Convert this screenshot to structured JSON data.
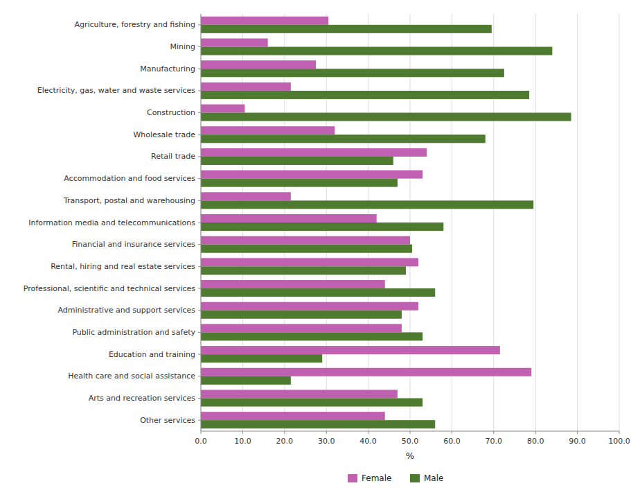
{
  "chart_data": {
    "type": "bar",
    "orientation": "horizontal",
    "categories": [
      "Agriculture, forestry and fishing",
      "Mining",
      "Manufacturing",
      "Electricity, gas, water and waste services",
      "Construction",
      "Wholesale trade",
      "Retail trade",
      "Accommodation and food services",
      "Transport, postal and warehousing",
      "Information media and telecommunications",
      "Financial and insurance services",
      "Rental, hiring and real estate services",
      "Professional, scientific and technical services",
      "Administrative and support services",
      "Public administration and safety",
      "Education and training",
      "Health care and social assistance",
      "Arts and recreation services",
      "Other services"
    ],
    "series": [
      {
        "name": "Female",
        "color": "#C060B0",
        "values": [
          30.5,
          16.0,
          27.5,
          21.5,
          10.5,
          32.0,
          54.0,
          53.0,
          21.5,
          42.0,
          50.0,
          52.0,
          44.0,
          52.0,
          48.0,
          71.5,
          79.0,
          47.0,
          44.0
        ]
      },
      {
        "name": "Male",
        "color": "#4E7B2F",
        "values": [
          69.5,
          84.0,
          72.5,
          78.5,
          88.5,
          68.0,
          46.0,
          47.0,
          79.5,
          58.0,
          50.5,
          49.0,
          56.0,
          48.0,
          53.0,
          29.0,
          21.5,
          53.0,
          56.0
        ]
      }
    ],
    "x_label": "%",
    "xlim": [
      0,
      100
    ],
    "xticks": [
      {
        "value": 0,
        "label": "0.0"
      },
      {
        "value": 10,
        "label": "10.0"
      },
      {
        "value": 20,
        "label": "20.0"
      },
      {
        "value": 30,
        "label": "30.0"
      },
      {
        "value": 40,
        "label": "40.0"
      },
      {
        "value": 50,
        "label": "50.0"
      },
      {
        "value": 60,
        "label": "60.0"
      },
      {
        "value": 70,
        "label": "70.0"
      },
      {
        "value": 80,
        "label": "80.0"
      },
      {
        "value": 90,
        "label": "90.0"
      },
      {
        "value": 100,
        "label": "100.0"
      }
    ],
    "grid": true,
    "legend": "bottom"
  }
}
